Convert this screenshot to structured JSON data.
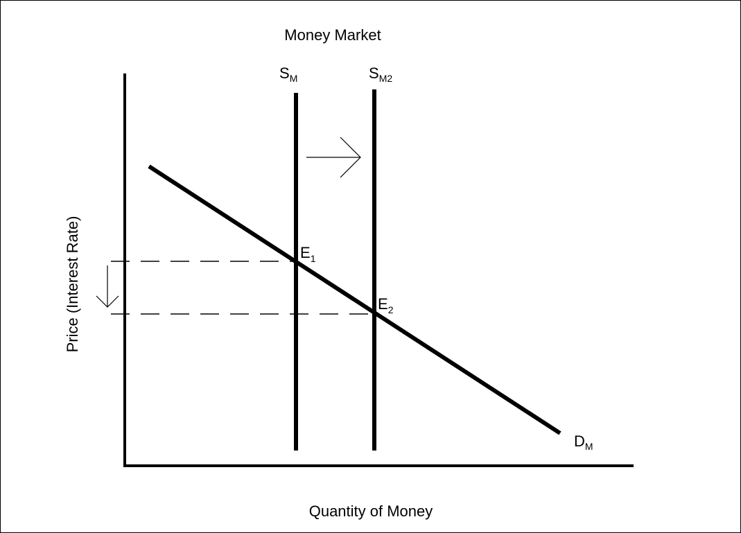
{
  "title": "Money Market",
  "x_axis_label": "Quantity of Money",
  "y_axis_label": "Price (Interest Rate)",
  "supply_1": {
    "main": "S",
    "sub": "M"
  },
  "supply_2": {
    "main": "S",
    "sub": "M2"
  },
  "demand": {
    "main": "D",
    "sub": "M"
  },
  "equilibrium_1": {
    "main": "E",
    "sub": "1"
  },
  "equilibrium_2": {
    "main": "E",
    "sub": "2"
  }
}
